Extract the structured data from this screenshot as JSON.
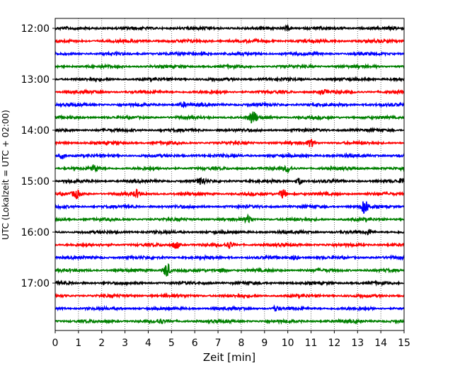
{
  "chart_data": {
    "type": "line",
    "xlabel": "Zeit  [min]",
    "ylabel": "UTC (Lokalzeit = UTC + 02:00)",
    "xlim": [
      0,
      15
    ],
    "x_ticks": [
      "0",
      "1",
      "2",
      "3",
      "4",
      "5",
      "6",
      "7",
      "8",
      "9",
      "10",
      "11",
      "12",
      "13",
      "14",
      "15"
    ],
    "y_ticks": [
      {
        "label": "12:00",
        "trace": 0
      },
      {
        "label": "13:00",
        "trace": 4
      },
      {
        "label": "14:00",
        "trace": 8
      },
      {
        "label": "15:00",
        "trace": 12
      },
      {
        "label": "16:00",
        "trace": 16
      },
      {
        "label": "17:00",
        "trace": 20
      }
    ],
    "grid": "vertical dotted at each minute",
    "trace_interval_min": 15,
    "trace_colors": [
      "#000000",
      "#ff0000",
      "#0000ff",
      "#008000"
    ],
    "traces": [
      {
        "start": "12:00",
        "events": [
          {
            "x": 10.0,
            "amp": 1.4
          }
        ]
      },
      {
        "start": "12:15",
        "events": []
      },
      {
        "start": "12:30",
        "events": [
          {
            "x": 6.5,
            "amp": 1.3
          }
        ]
      },
      {
        "start": "12:45",
        "events": []
      },
      {
        "start": "13:00",
        "events": []
      },
      {
        "start": "13:15",
        "events": [
          {
            "x": 11.5,
            "amp": 1.3
          }
        ]
      },
      {
        "start": "13:30",
        "events": [
          {
            "x": 5.5,
            "amp": 1.2
          }
        ]
      },
      {
        "start": "13:45",
        "events": [
          {
            "x": 8.5,
            "amp": 4.5
          }
        ]
      },
      {
        "start": "14:00",
        "events": []
      },
      {
        "start": "14:15",
        "events": [
          {
            "x": 11.0,
            "amp": 2.2
          }
        ]
      },
      {
        "start": "14:30",
        "events": [
          {
            "x": 0.3,
            "amp": 1.5
          }
        ]
      },
      {
        "start": "14:45",
        "events": [
          {
            "x": 1.7,
            "amp": 2.0
          },
          {
            "x": 10.0,
            "amp": 2.0
          }
        ]
      },
      {
        "start": "15:00",
        "events": [
          {
            "x": 6.3,
            "amp": 2.0
          },
          {
            "x": 10.5,
            "amp": 2.0
          },
          {
            "x": 15.0,
            "amp": 2.5
          }
        ]
      },
      {
        "start": "15:15",
        "events": [
          {
            "x": 0.9,
            "amp": 2.5
          },
          {
            "x": 3.5,
            "amp": 2.0
          },
          {
            "x": 9.8,
            "amp": 3.0
          }
        ]
      },
      {
        "start": "15:30",
        "events": [
          {
            "x": 13.3,
            "amp": 4.5
          }
        ]
      },
      {
        "start": "15:45",
        "events": [
          {
            "x": 8.3,
            "amp": 2.0
          }
        ]
      },
      {
        "start": "16:00",
        "events": [
          {
            "x": 13.5,
            "amp": 1.5
          }
        ]
      },
      {
        "start": "16:15",
        "events": [
          {
            "x": 5.2,
            "amp": 2.5
          },
          {
            "x": 7.5,
            "amp": 1.8
          }
        ]
      },
      {
        "start": "16:30",
        "events": [
          {
            "x": 10.3,
            "amp": 1.5
          }
        ]
      },
      {
        "start": "16:45",
        "events": [
          {
            "x": 4.8,
            "amp": 4.5
          },
          {
            "x": 7.2,
            "amp": 1.8
          }
        ]
      },
      {
        "start": "17:00",
        "events": []
      },
      {
        "start": "17:15",
        "events": []
      },
      {
        "start": "17:30",
        "events": [
          {
            "x": 9.5,
            "amp": 1.5
          }
        ]
      },
      {
        "start": "17:45",
        "events": [
          {
            "x": 4.5,
            "amp": 1.2
          }
        ]
      }
    ]
  }
}
